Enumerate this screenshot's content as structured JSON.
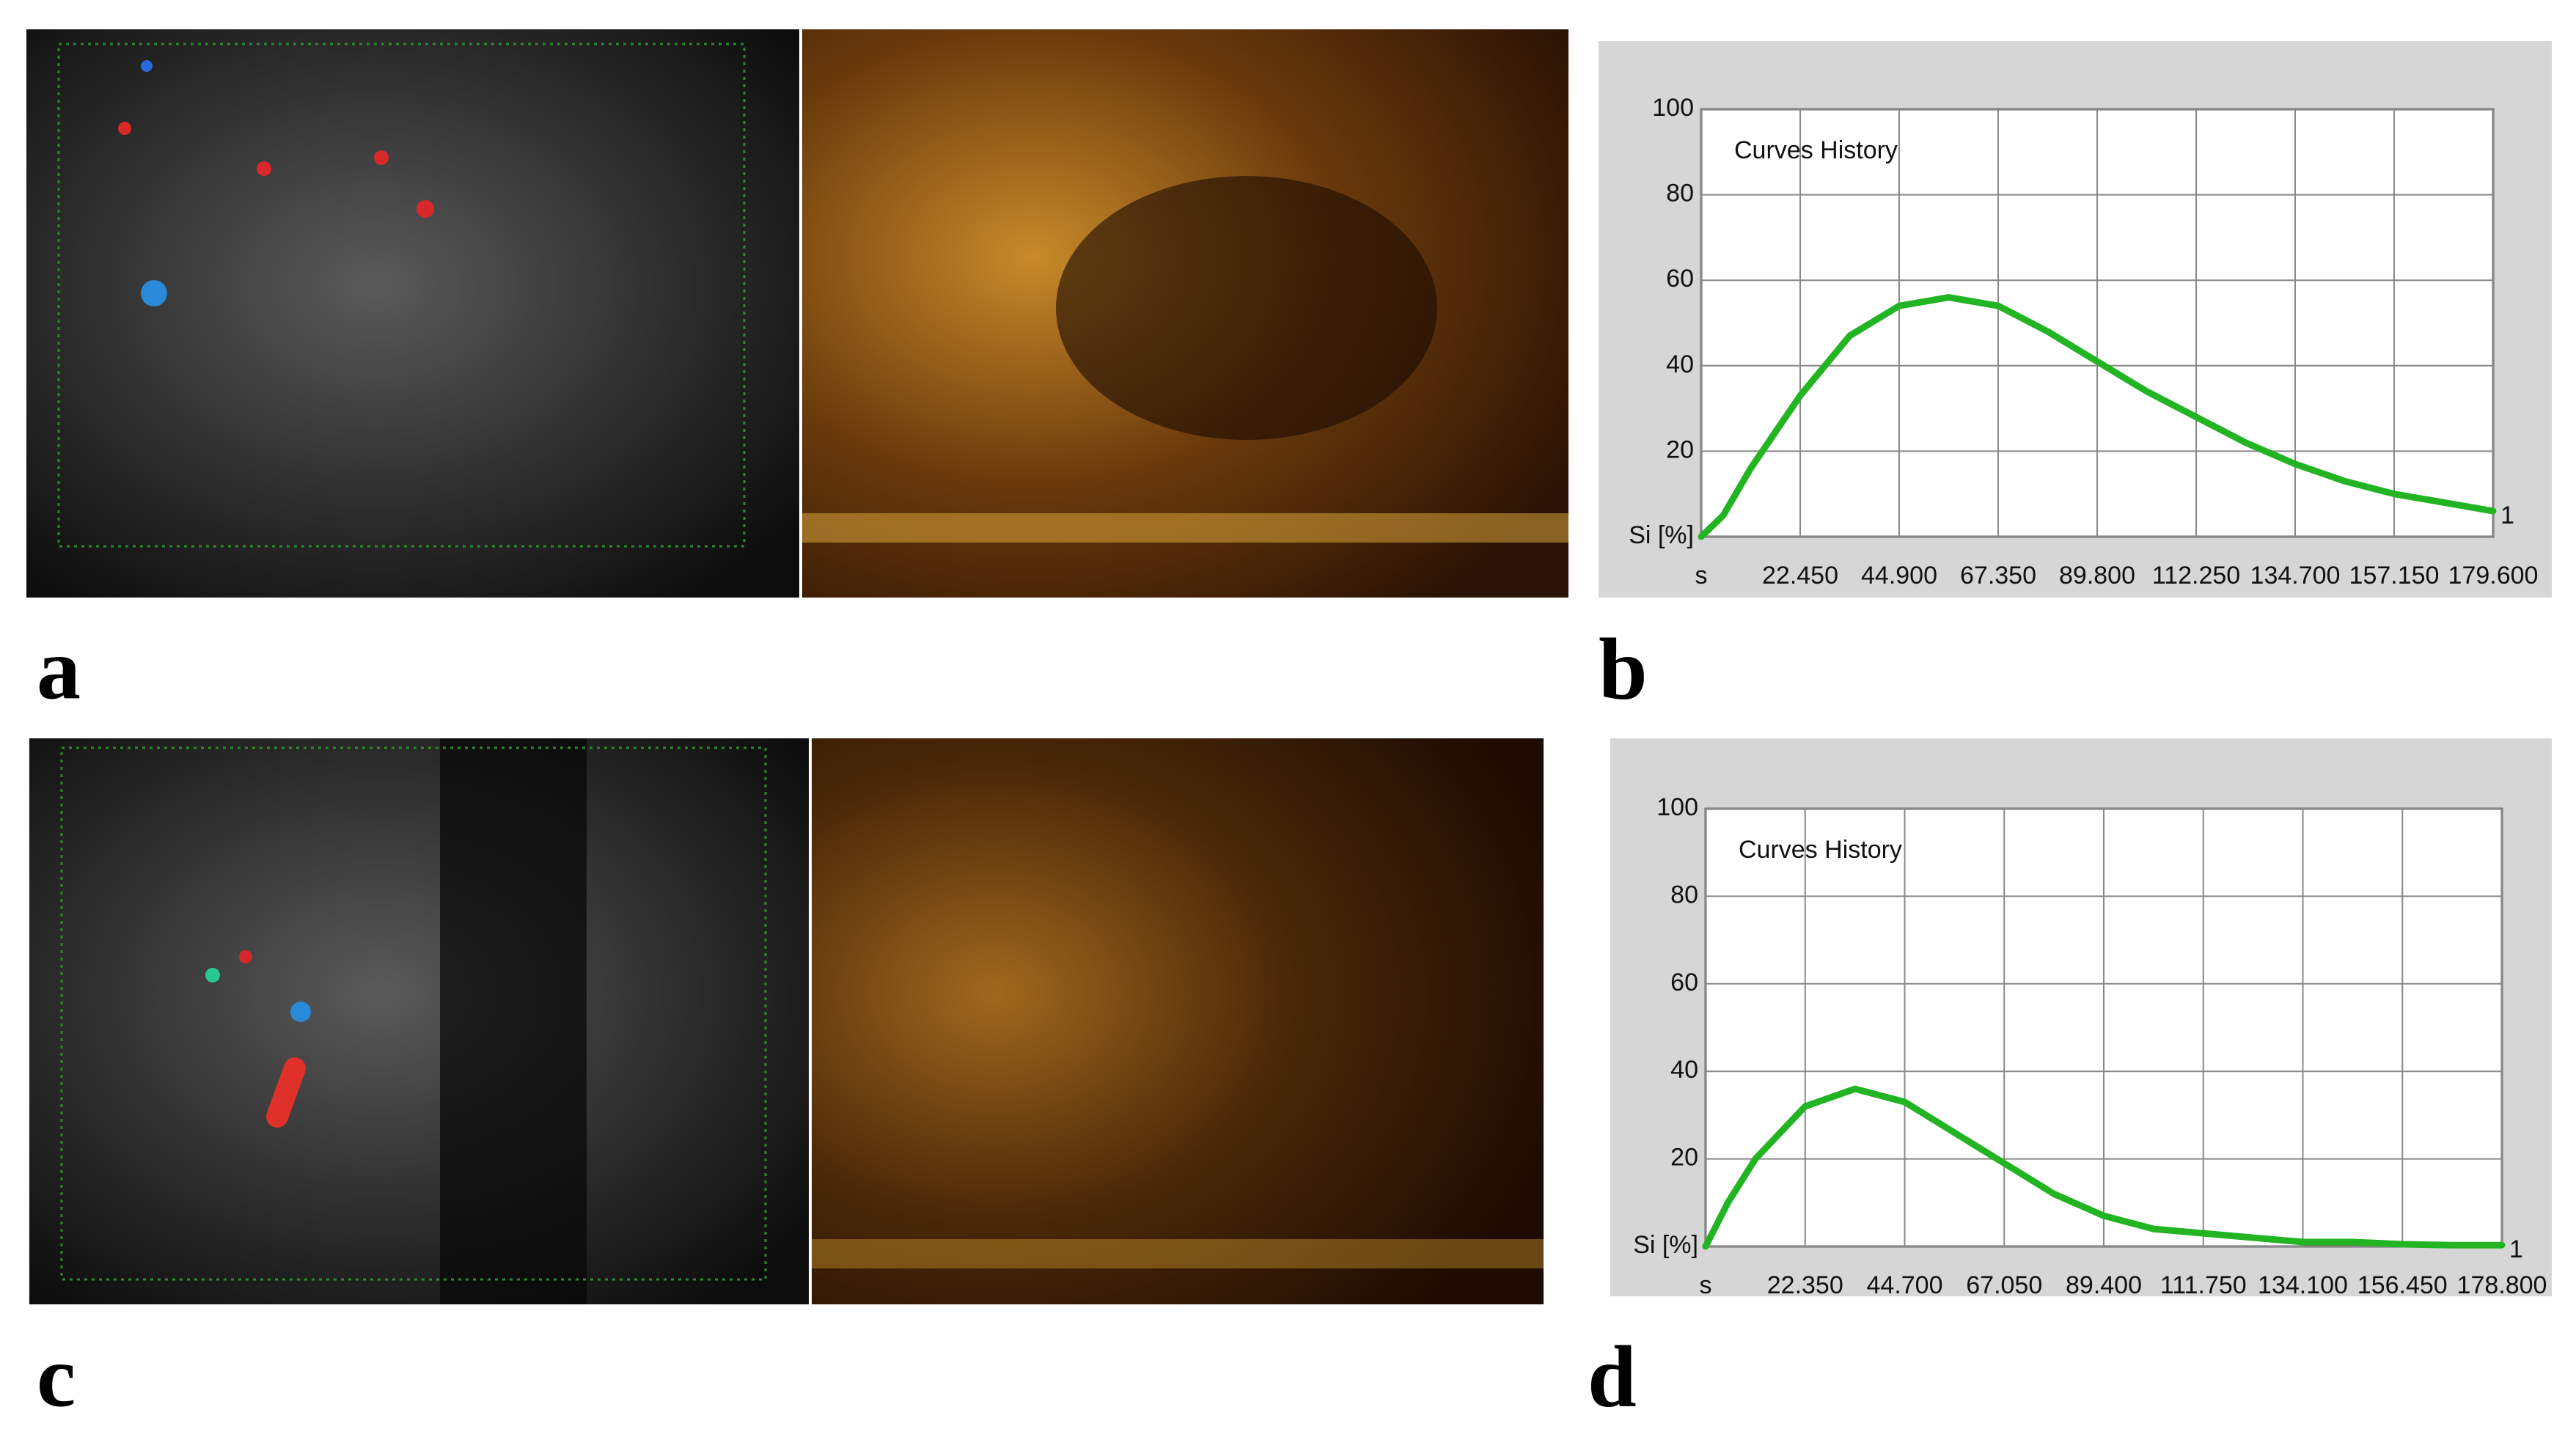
{
  "panel_labels": [
    "a",
    "b",
    "c",
    "d"
  ],
  "chart_data": [
    {
      "type": "line",
      "title": "Curves History",
      "x": [
        0,
        5,
        11.225,
        22.45,
        33.675,
        44.9,
        56.125,
        67.35,
        78.575,
        89.8,
        101.025,
        112.25,
        123.475,
        134.7,
        145.925,
        157.15,
        168.375,
        179.6
      ],
      "series": [
        {
          "name": "1",
          "color": "#22b422",
          "values": [
            0,
            5,
            16,
            33,
            47,
            54,
            56,
            54,
            48,
            41,
            34,
            28,
            22,
            17,
            13,
            10,
            8,
            6
          ]
        }
      ],
      "xlim": [
        0,
        179.6
      ],
      "xticks": [
        {
          "value": 0,
          "label": "s"
        },
        {
          "value": 22.45,
          "label": "22.450"
        },
        {
          "value": 44.9,
          "label": "44.900"
        },
        {
          "value": 67.35,
          "label": "67.350"
        },
        {
          "value": 89.8,
          "label": "89.800"
        },
        {
          "value": 112.25,
          "label": "112.250"
        },
        {
          "value": 134.7,
          "label": "134.700"
        },
        {
          "value": 157.15,
          "label": "157.150"
        },
        {
          "value": 179.6,
          "label": "179.600"
        }
      ],
      "ylim": [
        0,
        100
      ],
      "yticks": [
        {
          "value": 0,
          "label": "Si [%]"
        },
        20,
        40,
        60,
        80,
        100
      ],
      "grid": true
    },
    {
      "type": "line",
      "title": "Curves History",
      "x": [
        0,
        5,
        11.175,
        22.35,
        33.525,
        44.7,
        55.875,
        67.05,
        78.225,
        89.4,
        100.575,
        111.75,
        122.925,
        134.1,
        145.275,
        156.45,
        167.625,
        178.8
      ],
      "series": [
        {
          "name": "1",
          "color": "#22b422",
          "values": [
            0,
            10,
            20,
            32,
            36,
            33,
            26,
            19,
            12,
            7,
            4,
            3,
            2,
            1,
            1,
            0.5,
            0.3,
            0.3
          ]
        }
      ],
      "xlim": [
        0,
        178.8
      ],
      "xticks": [
        {
          "value": 0,
          "label": "s"
        },
        {
          "value": 22.35,
          "label": "22.350"
        },
        {
          "value": 44.7,
          "label": "44.700"
        },
        {
          "value": 67.05,
          "label": "67.050"
        },
        {
          "value": 89.4,
          "label": "89.400"
        },
        {
          "value": 111.75,
          "label": "111.750"
        },
        {
          "value": 134.1,
          "label": "134.100"
        },
        {
          "value": 156.45,
          "label": "156.450"
        },
        {
          "value": 178.8,
          "label": "178.800"
        }
      ],
      "ylim": [
        0,
        100
      ],
      "yticks": [
        {
          "value": 0,
          "label": "Si [%]"
        },
        20,
        40,
        60,
        80,
        100
      ],
      "grid": true
    }
  ]
}
